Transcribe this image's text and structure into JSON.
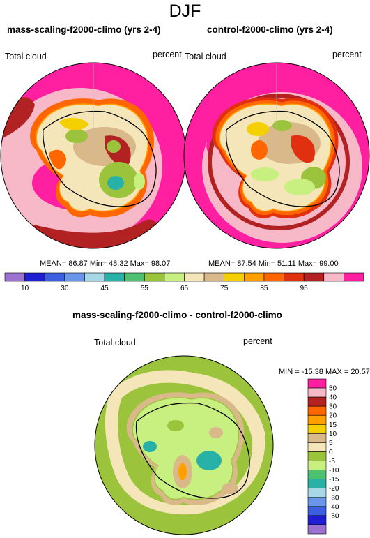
{
  "page_title": "DJF",
  "panel_left": {
    "title": "mass-scaling-f2000-climo (yrs 2-4)",
    "variable": "Total cloud",
    "units": "percent",
    "stats": "MEAN= 86.87  Min= 48.32  Max= 98.07"
  },
  "panel_right": {
    "title": "control-f2000-climo (yrs 2-4)",
    "variable": "Total cloud",
    "units": "percent",
    "stats": "MEAN= 87.54  Min= 51.11  Max= 99.00"
  },
  "panel_diff": {
    "title": "mass-scaling-f2000-climo - control-f2000-climo",
    "variable": "Total cloud",
    "units": "percent",
    "stats": "MIN = -15.38 MAX =  20.57"
  },
  "colorbar_top": {
    "colors": [
      "#9b72cf",
      "#1f1fd1",
      "#3b5fe0",
      "#6a96ea",
      "#a8d8e8",
      "#27b1a7",
      "#4fc071",
      "#9bc43c",
      "#c8f080",
      "#f5e6b9",
      "#d9b98a",
      "#f5d000",
      "#ffa000",
      "#ff6600",
      "#e03010",
      "#b22222",
      "#f7b8c8",
      "#ff1fa0"
    ],
    "labels": [
      "10",
      "30",
      "45",
      "55",
      "65",
      "75",
      "85",
      "95"
    ]
  },
  "colorbar_diff": {
    "colors": [
      "#9b72cf",
      "#1f1fd1",
      "#3b5fe0",
      "#6a96ea",
      "#a8d8e8",
      "#27b1a7",
      "#4fc071",
      "#c8f080",
      "#9bc43c",
      "#f5e6b9",
      "#d9b98a",
      "#f5d000",
      "#ffa000",
      "#ff6600",
      "#b22222",
      "#f7b8c8",
      "#ff1fa0"
    ],
    "labels": [
      "50",
      "40",
      "30",
      "20",
      "15",
      "10",
      "5",
      "0",
      "-5",
      "-10",
      "-15",
      "-20",
      "-30",
      "-40",
      "-50"
    ]
  }
}
